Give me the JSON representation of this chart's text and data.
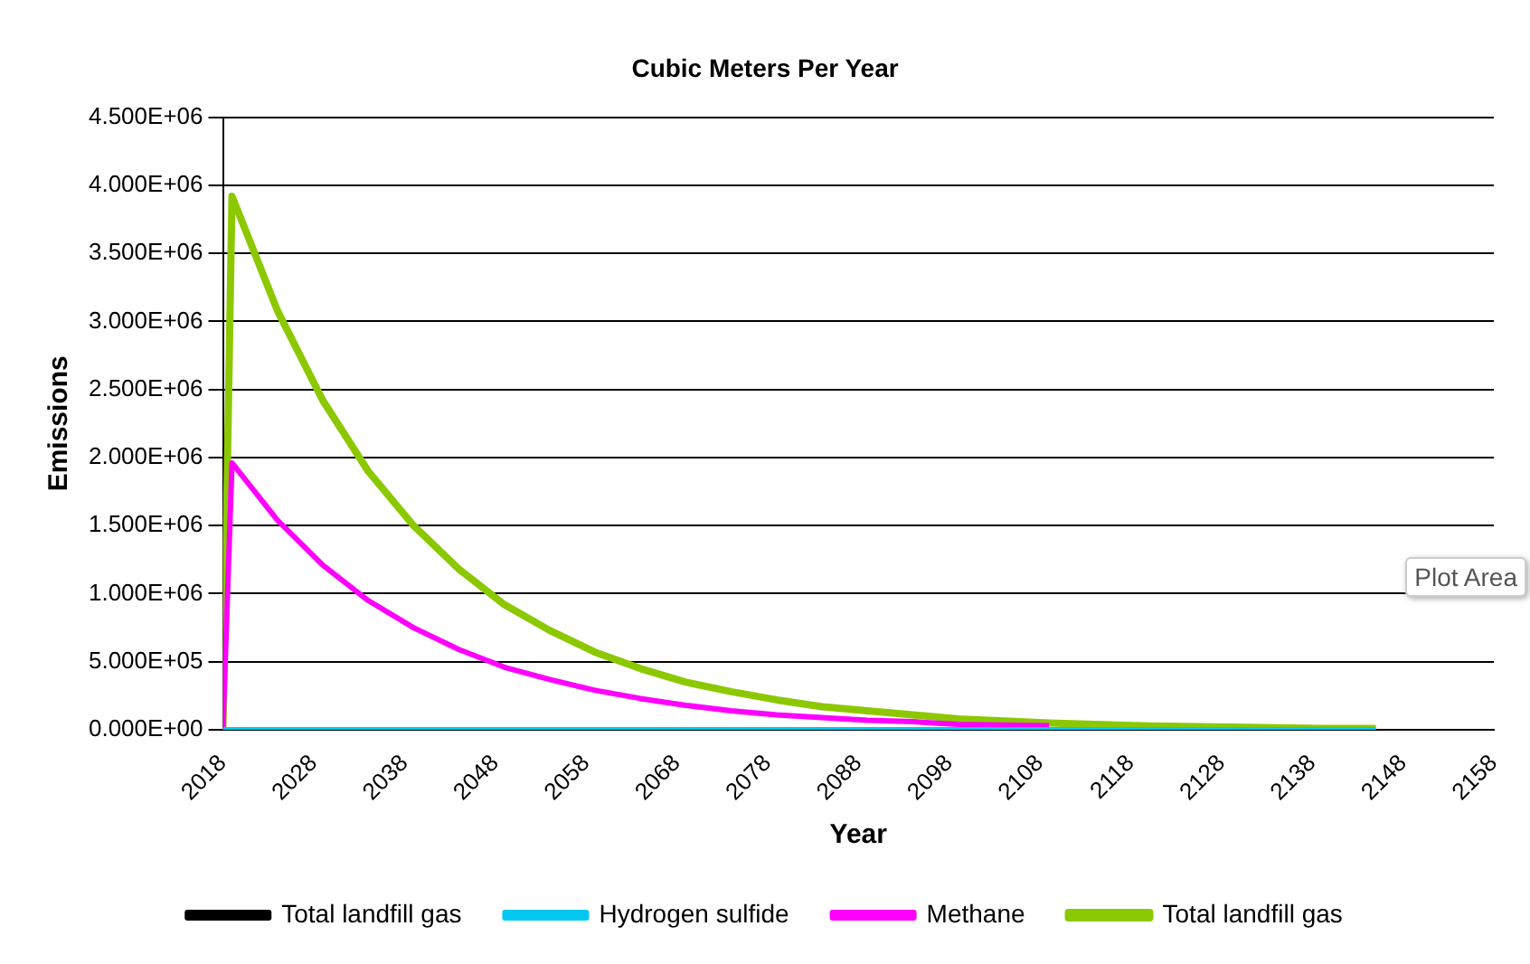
{
  "chart_data": {
    "type": "line",
    "title": "Cubic Meters Per Year",
    "xlabel": "Year",
    "ylabel": "Emissions",
    "x": [
      2018,
      2019,
      2024,
      2029,
      2034,
      2039,
      2044,
      2049,
      2054,
      2059,
      2064,
      2069,
      2074,
      2079,
      2084,
      2089,
      2094,
      2099,
      2109,
      2119,
      2129,
      2139,
      2145
    ],
    "xlim": [
      2018,
      2158
    ],
    "xticks": [
      2018,
      2028,
      2038,
      2048,
      2058,
      2068,
      2078,
      2088,
      2098,
      2108,
      2118,
      2128,
      2138,
      2148,
      2158
    ],
    "ylim": [
      0,
      4500000
    ],
    "yticks": [
      {
        "value": 0,
        "label": "0.000E+00"
      },
      {
        "value": 500000,
        "label": "5.000E+05"
      },
      {
        "value": 1000000,
        "label": "1.000E+06"
      },
      {
        "value": 1500000,
        "label": "1.500E+06"
      },
      {
        "value": 2000000,
        "label": "2.000E+06"
      },
      {
        "value": 2500000,
        "label": "2.500E+06"
      },
      {
        "value": 3000000,
        "label": "3.000E+06"
      },
      {
        "value": 3500000,
        "label": "3.500E+06"
      },
      {
        "value": 4000000,
        "label": "4.000E+06"
      },
      {
        "value": 4500000,
        "label": "4.500E+06"
      }
    ],
    "series": [
      {
        "name": "Total landfill gas",
        "color": "#000000",
        "values": [
          null,
          null,
          null,
          null,
          null,
          null,
          null,
          null,
          null,
          null,
          null,
          null,
          null,
          null,
          null,
          null,
          null,
          null,
          null,
          null,
          null,
          null,
          null
        ]
      },
      {
        "name": "Hydrogen sulfide",
        "color": "#00c8f0",
        "values": [
          0,
          0,
          0,
          0,
          0,
          0,
          0,
          0,
          0,
          0,
          0,
          0,
          0,
          0,
          0,
          0,
          0,
          0,
          0,
          0,
          0,
          0,
          0
        ]
      },
      {
        "name": "Methane",
        "color": "#ff00ff",
        "values": [
          0,
          1960000,
          1540000,
          1210000,
          950000,
          750000,
          590000,
          460000,
          370000,
          290000,
          230000,
          180000,
          140000,
          110000,
          90000,
          70000,
          60000,
          40000,
          30000,
          null,
          null,
          null,
          null
        ]
      },
      {
        "name": "Total landfill gas",
        "color": "#8cc800",
        "values": [
          0,
          3920000,
          3080000,
          2420000,
          1900000,
          1500000,
          1180000,
          920000,
          730000,
          570000,
          450000,
          350000,
          280000,
          220000,
          170000,
          140000,
          110000,
          80000,
          50000,
          30000,
          20000,
          10000,
          10000
        ]
      }
    ],
    "grid": "y",
    "legend": "bottom",
    "marker": "none",
    "line_style": "solid",
    "annotations": [
      "Plot Area"
    ]
  }
}
